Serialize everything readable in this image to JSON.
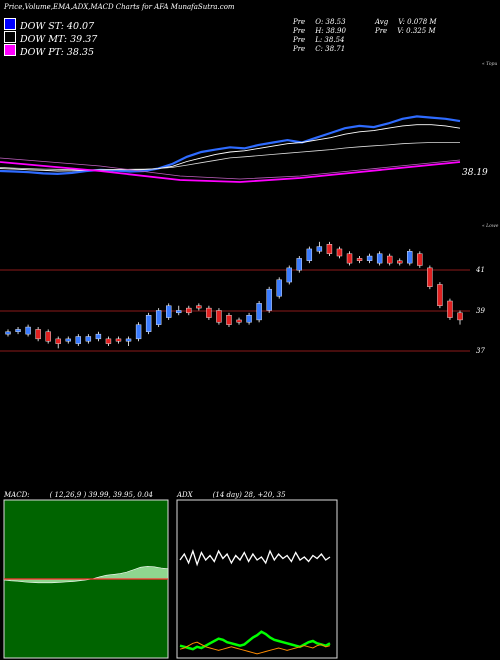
{
  "header": {
    "title": "Price,Volume,EMA,ADX,MACD Charts for AFA MunafaSutra.com"
  },
  "legend": [
    {
      "label": "DOW ST: 40.07",
      "color": "#0000ff"
    },
    {
      "label": "DOW MT: 39.37",
      "color": "#000000"
    },
    {
      "label": "DOW PT: 38.35",
      "color": "#ff00ff"
    }
  ],
  "ohlc_left": [
    {
      "k": "Pre",
      "v": "O: 38.53"
    },
    {
      "k": "Pre",
      "v": "H: 38.90"
    },
    {
      "k": "Pre",
      "v": "L: 38.54"
    },
    {
      "k": "Pre",
      "v": "C: 38.71"
    }
  ],
  "ohlc_right": [
    {
      "k": "Avg",
      "v": "V: 0.078  M"
    },
    {
      "k": "Pre",
      "v": "V: 0.325  M"
    }
  ],
  "ema_panel": {
    "last_price": "38.19",
    "edge_label": "« Topu"
  },
  "price_panel": {
    "edge_label": "« Lowe",
    "y_labels": [
      "41",
      "39",
      "37"
    ]
  },
  "macd": {
    "title": "MACD:",
    "values": "( 12,26,9 ) 39.99, 39.95, 0.04"
  },
  "adx": {
    "title": "ADX",
    "values": "(14  day) 28,  +20,  35"
  },
  "colors": {
    "bull": "#3a7bff",
    "bear": "#e02020",
    "grid_red": "#8b1a1a",
    "macd_bg": "#006400",
    "adx_plus": "#00ff00",
    "adx_minus": "#ff8c00"
  },
  "chart_data": [
    {
      "type": "line",
      "name": "ema-panel",
      "series": [
        {
          "name": "",
          "values": [
            38.3,
            38.28,
            38.25,
            38.2,
            38.18,
            38.22,
            38.3,
            38.35,
            38.32,
            38.28,
            38.3,
            38.4,
            38.6,
            38.9,
            39.1,
            39.2,
            39.3,
            39.25,
            39.4,
            39.5,
            39.6,
            39.5,
            39.7,
            39.9,
            40.1,
            40.2,
            40.15,
            40.3,
            40.5,
            40.6,
            40.55,
            40.5,
            40.4
          ]
        },
        {
          "name": "",
          "values": [
            38.4,
            38.38,
            38.35,
            38.33,
            38.3,
            38.31,
            38.33,
            38.35,
            38.36,
            38.35,
            38.36,
            38.4,
            38.5,
            38.7,
            38.85,
            39.0,
            39.1,
            39.15,
            39.25,
            39.35,
            39.45,
            39.5,
            39.6,
            39.7,
            39.85,
            39.95,
            40.0,
            40.1,
            40.2,
            40.25,
            40.25,
            40.2,
            40.1
          ]
        },
        {
          "name": "",
          "values": [
            38.45,
            38.42,
            38.4,
            38.38,
            38.37,
            38.36,
            38.35,
            38.35,
            38.36,
            38.37,
            38.38,
            38.4,
            38.45,
            38.55,
            38.65,
            38.75,
            38.85,
            38.9,
            38.95,
            39.0,
            39.05,
            39.1,
            39.15,
            39.2,
            39.27,
            39.32,
            39.36,
            39.4,
            39.45,
            39.48,
            39.5,
            39.5,
            39.5
          ]
        }
      ]
    },
    {
      "type": "bar",
      "name": "price-candles",
      "categories": [
        "1",
        "2",
        "3",
        "4",
        "5",
        "6",
        "7",
        "8",
        "9",
        "10",
        "11",
        "12",
        "13",
        "14",
        "15",
        "16",
        "17",
        "18",
        "19",
        "20",
        "21",
        "22",
        "23",
        "24",
        "25",
        "26",
        "27",
        "28",
        "29",
        "30",
        "31",
        "32",
        "33",
        "34",
        "35",
        "36",
        "37",
        "38",
        "39",
        "40",
        "41",
        "42",
        "43",
        "44",
        "45",
        "46"
      ],
      "series": [
        {
          "name": "open",
          "values": [
            38.1,
            38.2,
            38.1,
            38.3,
            38.2,
            37.9,
            37.8,
            37.7,
            37.8,
            37.9,
            37.9,
            37.9,
            37.8,
            37.9,
            38.2,
            38.5,
            38.8,
            39.0,
            39.2,
            39.3,
            39.2,
            39.1,
            38.9,
            38.7,
            38.6,
            38.7,
            39.1,
            39.7,
            40.3,
            40.8,
            41.2,
            41.6,
            41.9,
            41.7,
            41.5,
            41.3,
            41.2,
            41.1,
            41.4,
            41.2,
            41.1,
            41.5,
            40.9,
            40.2,
            39.5,
            39.0
          ]
        },
        {
          "name": "close",
          "values": [
            38.2,
            38.3,
            38.4,
            37.9,
            37.8,
            37.7,
            37.9,
            38.0,
            38.0,
            38.1,
            37.7,
            37.8,
            37.9,
            38.5,
            38.9,
            39.1,
            39.3,
            39.1,
            39.0,
            39.2,
            38.8,
            38.6,
            38.5,
            38.6,
            38.9,
            39.4,
            40.0,
            40.4,
            40.9,
            41.3,
            41.7,
            41.8,
            41.5,
            41.4,
            41.1,
            41.2,
            41.4,
            41.5,
            41.1,
            41.1,
            41.6,
            41.0,
            40.1,
            39.3,
            38.8,
            38.7
          ]
        },
        {
          "name": "high",
          "values": [
            38.3,
            38.4,
            38.5,
            38.4,
            38.3,
            38.0,
            38.0,
            38.1,
            38.1,
            38.2,
            38.0,
            38.0,
            38.0,
            38.6,
            39.0,
            39.2,
            39.4,
            39.3,
            39.3,
            39.4,
            39.3,
            39.2,
            39.0,
            38.8,
            39.0,
            39.5,
            40.1,
            40.5,
            41.0,
            41.4,
            41.8,
            42.0,
            42.0,
            41.8,
            41.6,
            41.4,
            41.5,
            41.6,
            41.5,
            41.3,
            41.7,
            41.6,
            41.0,
            40.3,
            39.6,
            39.1
          ]
        },
        {
          "name": "low",
          "values": [
            38.0,
            38.1,
            38.0,
            37.8,
            37.7,
            37.5,
            37.7,
            37.6,
            37.7,
            37.8,
            37.6,
            37.7,
            37.6,
            37.8,
            38.1,
            38.4,
            38.7,
            38.9,
            38.9,
            39.1,
            38.7,
            38.5,
            38.4,
            38.5,
            38.5,
            38.6,
            39.0,
            39.6,
            40.2,
            40.7,
            41.1,
            41.5,
            41.4,
            41.3,
            41.0,
            41.1,
            41.1,
            41.0,
            41.0,
            41.0,
            41.0,
            40.9,
            40.0,
            39.2,
            38.7,
            38.5
          ]
        }
      ],
      "ylim": [
        36.5,
        42.5
      ]
    },
    {
      "type": "area",
      "name": "macd",
      "series": [
        {
          "name": "",
          "values": [
            0.0,
            -0.02,
            -0.03,
            -0.05,
            -0.06,
            -0.07,
            -0.07,
            -0.07,
            -0.06,
            -0.05,
            -0.04,
            -0.02,
            0.0,
            0.03,
            0.08,
            0.12,
            0.14,
            0.16,
            0.2,
            0.26,
            0.32,
            0.34,
            0.33,
            0.3,
            0.28
          ]
        }
      ]
    },
    {
      "type": "line",
      "name": "adx",
      "series": [
        {
          "name": "",
          "values": [
            30,
            34,
            28,
            36,
            27,
            35,
            30,
            33,
            29,
            36,
            31,
            34,
            28,
            33,
            30,
            35,
            29,
            34,
            30,
            32,
            28,
            36,
            30,
            34,
            31,
            33,
            29,
            35,
            30,
            32,
            29,
            33,
            31,
            34,
            30,
            32
          ]
        },
        {
          "name": "",
          "values": [
            18,
            17,
            16,
            15,
            17,
            16,
            18,
            20,
            22,
            24,
            23,
            21,
            20,
            19,
            18,
            19,
            22,
            25,
            27,
            30,
            28,
            25,
            23,
            22,
            21,
            20,
            19,
            18,
            17,
            19,
            21,
            22,
            20,
            19,
            18,
            20
          ]
        },
        {
          "name": "",
          "values": [
            15,
            16,
            18,
            20,
            21,
            19,
            17,
            16,
            15,
            14,
            15,
            16,
            17,
            16,
            15,
            14,
            13,
            12,
            11,
            12,
            13,
            14,
            15,
            16,
            15,
            14,
            15,
            16,
            17,
            18,
            17,
            16,
            18,
            19,
            17,
            18
          ]
        }
      ]
    }
  ]
}
